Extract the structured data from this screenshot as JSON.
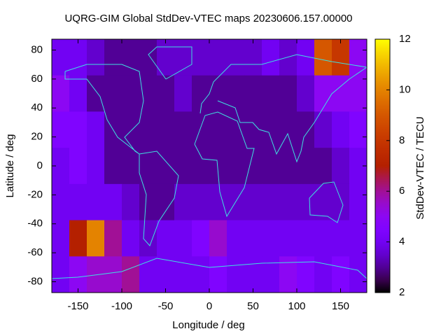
{
  "chart_data": {
    "type": "heatmap",
    "title": "UQRG-GIM Global StdDev-VTEC maps 20230606.157.00000",
    "x_label": "Longitude / deg",
    "y_label": "Latitude / deg",
    "colorbar_label": "StdDev-VTEC / TECU",
    "colormap": "gnuplot",
    "x": [
      -170,
      -150,
      -130,
      -110,
      -90,
      -70,
      -50,
      -30,
      -10,
      10,
      30,
      50,
      70,
      90,
      110,
      130,
      150,
      170
    ],
    "y": [
      75,
      50,
      25,
      0,
      -25,
      -50,
      -75
    ],
    "z": [
      [
        4,
        4,
        3.5,
        3,
        3,
        3,
        3.5,
        3.5,
        3.5,
        3.5,
        3.5,
        3.5,
        4,
        3.5,
        4,
        9,
        8,
        5
      ],
      [
        5,
        4,
        3,
        3,
        3,
        3,
        3,
        3.5,
        3,
        3,
        3,
        3,
        3,
        3,
        3.5,
        5,
        5,
        5
      ],
      [
        4.5,
        4.5,
        4,
        3,
        3,
        3,
        3,
        3,
        3,
        3,
        3,
        3,
        3,
        3,
        3,
        3.5,
        4,
        4.5
      ],
      [
        4,
        4.5,
        4,
        3,
        3,
        3,
        3,
        3,
        3,
        3,
        3,
        3,
        3,
        3,
        3,
        3,
        3.5,
        4
      ],
      [
        4,
        4,
        4,
        4,
        3.5,
        3,
        3,
        3.5,
        3.5,
        3.5,
        3.5,
        3.5,
        3.5,
        3.5,
        3.5,
        3.5,
        3.5,
        4
      ],
      [
        4,
        7,
        10,
        6,
        4,
        3.5,
        4,
        4,
        4.5,
        5.5,
        4,
        4,
        4,
        4,
        4,
        4,
        4,
        4
      ],
      [
        4,
        5,
        5.5,
        5.5,
        6,
        4,
        4,
        4,
        4,
        4.5,
        4,
        4,
        4,
        5,
        4.5,
        4,
        4.5,
        4
      ]
    ],
    "xlim": [
      -180,
      180
    ],
    "ylim": [
      -87.5,
      87.5
    ],
    "clim": [
      2,
      12
    ],
    "xticks": [
      -150,
      -100,
      -50,
      0,
      50,
      100,
      150
    ],
    "yticks": [
      -80,
      -60,
      -40,
      -20,
      0,
      20,
      40,
      60,
      80
    ],
    "cticks": [
      2,
      4,
      6,
      8,
      10,
      12
    ]
  }
}
